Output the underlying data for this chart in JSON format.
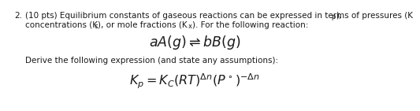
{
  "background_color": "#ffffff",
  "text_color": "#1a1a1a",
  "font_size_body": 7.5,
  "font_size_reaction": 12.5,
  "font_size_formula": 11.5,
  "number": "2.",
  "line1_main": "(10 pts) Equilibrium constants of gaseous reactions can be expressed in terms of pressures (K",
  "line1_sub": "p",
  "line1_end": "),",
  "line2_start": "concentrations (K",
  "line2_sub1": "c",
  "line2_mid": "), or mole fractions (K",
  "line2_sub2": "x",
  "line2_end": "). For the following reaction:",
  "reaction": "$aA(g) \\rightleftharpoons bB(g)$",
  "derive_text": "Derive the following expression (and state any assumptions):",
  "formula": "$K_p = K_C(RT)^{\\Delta n}(P^\\circ)^{-\\Delta n}$"
}
